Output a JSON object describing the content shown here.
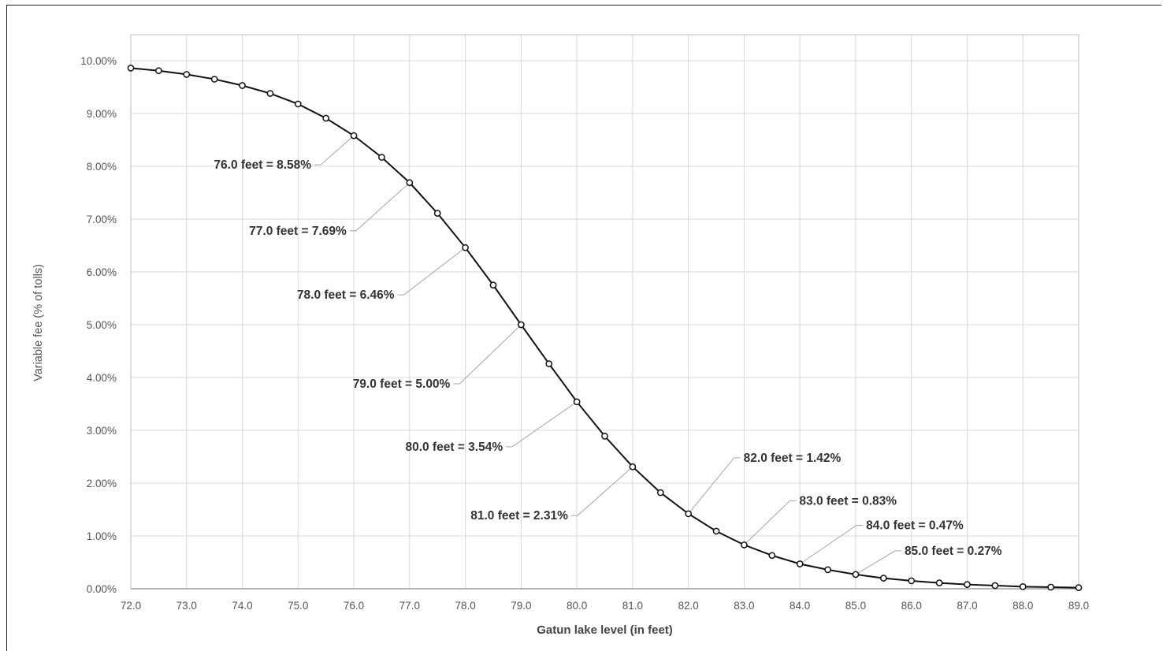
{
  "chart_data": {
    "type": "line",
    "xlabel": "Gatun lake level (in feet)",
    "ylabel": "Variable fee (% of tolls)",
    "xlim": [
      72.0,
      89.0
    ],
    "ylim": [
      0,
      10
    ],
    "x_ticks": [
      "72.0",
      "73.0",
      "74.0",
      "75.0",
      "76.0",
      "77.0",
      "78.0",
      "79.0",
      "80.0",
      "81.0",
      "82.0",
      "83.0",
      "84.0",
      "85.0",
      "86.0",
      "87.0",
      "88.0",
      "89.0"
    ],
    "y_ticks": [
      "0.00%",
      "1.00%",
      "2.00%",
      "3.00%",
      "4.00%",
      "5.00%",
      "6.00%",
      "7.00%",
      "8.00%",
      "9.00%",
      "10.00%"
    ],
    "grid": true,
    "line_color": "#111111",
    "series": [
      {
        "x": [
          72.0,
          72.5,
          73.0,
          73.5,
          74.0,
          74.5,
          75.0,
          75.5,
          76.0,
          76.5,
          77.0,
          77.5,
          78.0,
          78.5,
          79.0,
          79.5,
          80.0,
          80.5,
          81.0,
          81.5,
          82.0,
          82.5,
          83.0,
          83.5,
          84.0,
          84.5,
          85.0,
          85.5,
          86.0,
          86.5,
          87.0,
          87.5,
          88.0,
          88.5,
          89.0
        ],
        "y": [
          9.86,
          9.81,
          9.74,
          9.65,
          9.53,
          9.38,
          9.18,
          8.91,
          8.58,
          8.17,
          7.69,
          7.11,
          6.46,
          5.75,
          5.0,
          4.26,
          3.54,
          2.89,
          2.31,
          1.82,
          1.42,
          1.09,
          0.83,
          0.63,
          0.47,
          0.36,
          0.27,
          0.2,
          0.15,
          0.11,
          0.08,
          0.06,
          0.04,
          0.03,
          0.02
        ]
      }
    ],
    "annotations": [
      {
        "x": 76.0,
        "y": 8.58,
        "text": "76.0 feet = 8.58%"
      },
      {
        "x": 77.0,
        "y": 7.69,
        "text": "77.0 feet = 7.69%"
      },
      {
        "x": 78.0,
        "y": 6.46,
        "text": "78.0 feet = 6.46%"
      },
      {
        "x": 79.0,
        "y": 5.0,
        "text": "79.0 feet = 5.00%"
      },
      {
        "x": 80.0,
        "y": 3.54,
        "text": "80.0  feet = 3.54%"
      },
      {
        "x": 81.0,
        "y": 2.31,
        "text": "81.0 feet = 2.31%"
      },
      {
        "x": 82.0,
        "y": 1.42,
        "text": "82.0 feet = 1.42%"
      },
      {
        "x": 83.0,
        "y": 0.83,
        "text": "83.0 feet = 0.83%"
      },
      {
        "x": 84.0,
        "y": 0.47,
        "text": "84.0 feet = 0.47%"
      },
      {
        "x": 85.0,
        "y": 0.27,
        "text": "85.0 feet = 0.27%"
      }
    ]
  }
}
